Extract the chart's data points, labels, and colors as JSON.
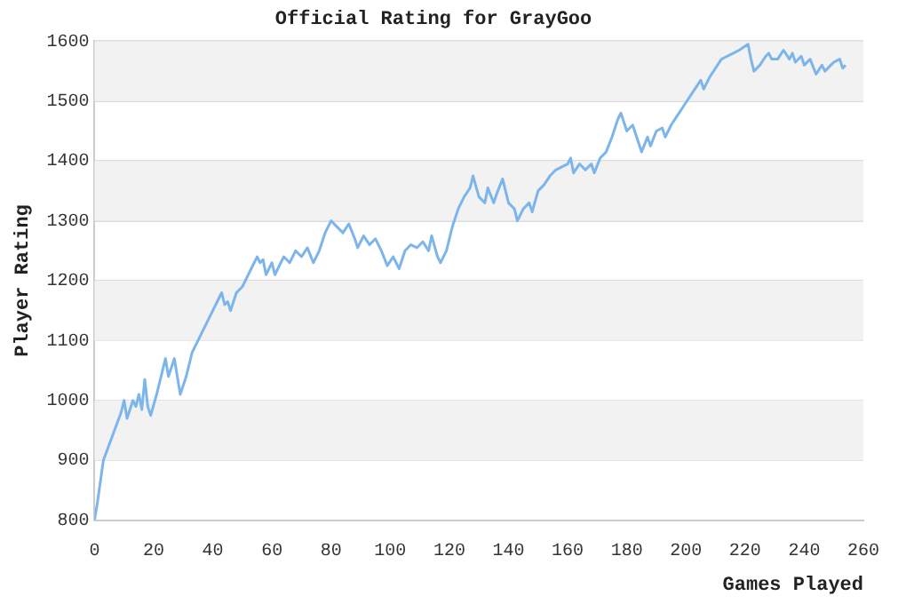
{
  "chart_data": {
    "type": "line",
    "title": "Official Rating for GrayGoo",
    "xlabel": "Games Played",
    "ylabel": "Player Rating",
    "x": [
      0,
      1,
      3,
      6,
      9,
      10,
      11,
      13,
      14,
      15,
      16,
      17,
      18,
      19,
      21,
      23,
      24,
      25,
      27,
      29,
      31,
      33,
      36,
      39,
      42,
      43,
      44,
      45,
      46,
      48,
      50,
      52,
      54,
      55,
      56,
      57,
      58,
      60,
      61,
      63,
      64,
      66,
      68,
      70,
      72,
      74,
      76,
      78,
      80,
      82,
      84,
      86,
      88,
      89,
      91,
      93,
      95,
      97,
      99,
      101,
      103,
      105,
      107,
      109,
      111,
      113,
      114,
      116,
      117,
      119,
      121,
      123,
      125,
      127,
      128,
      130,
      132,
      133,
      135,
      136,
      138,
      139,
      140,
      142,
      143,
      145,
      147,
      148,
      150,
      152,
      154,
      156,
      158,
      160,
      161,
      162,
      164,
      166,
      168,
      169,
      171,
      173,
      175,
      177,
      178,
      180,
      182,
      184,
      185,
      187,
      188,
      190,
      192,
      193,
      195,
      197,
      199,
      201,
      203,
      205,
      206,
      208,
      210,
      212,
      214,
      216,
      218,
      221,
      222,
      223,
      225,
      227,
      228,
      229,
      231,
      233,
      235,
      236,
      237,
      239,
      240,
      242,
      244,
      246,
      247,
      249,
      250,
      252,
      253,
      254
    ],
    "series": [
      {
        "color": "#7cb5ec",
        "values": [
          800,
          830,
          900,
          940,
          980,
          1000,
          970,
          1000,
          990,
          1010,
          985,
          1035,
          990,
          975,
          1010,
          1050,
          1070,
          1040,
          1070,
          1010,
          1040,
          1080,
          1110,
          1140,
          1170,
          1180,
          1160,
          1165,
          1150,
          1180,
          1190,
          1210,
          1230,
          1240,
          1230,
          1235,
          1210,
          1230,
          1210,
          1230,
          1240,
          1230,
          1250,
          1240,
          1255,
          1230,
          1250,
          1280,
          1300,
          1290,
          1280,
          1295,
          1270,
          1255,
          1275,
          1260,
          1270,
          1250,
          1225,
          1240,
          1220,
          1250,
          1260,
          1255,
          1265,
          1250,
          1275,
          1240,
          1230,
          1250,
          1290,
          1320,
          1340,
          1355,
          1375,
          1340,
          1330,
          1355,
          1330,
          1345,
          1370,
          1350,
          1330,
          1320,
          1300,
          1320,
          1330,
          1315,
          1350,
          1360,
          1375,
          1385,
          1390,
          1395,
          1405,
          1380,
          1395,
          1385,
          1395,
          1380,
          1405,
          1415,
          1440,
          1470,
          1480,
          1450,
          1460,
          1430,
          1415,
          1440,
          1425,
          1450,
          1455,
          1440,
          1460,
          1475,
          1490,
          1505,
          1520,
          1535,
          1520,
          1540,
          1555,
          1570,
          1575,
          1580,
          1585,
          1595,
          1570,
          1550,
          1560,
          1575,
          1580,
          1570,
          1570,
          1585,
          1570,
          1580,
          1565,
          1575,
          1560,
          1570,
          1545,
          1560,
          1550,
          1560,
          1565,
          1570,
          1555,
          1560
        ]
      }
    ],
    "xlim": [
      0,
      260
    ],
    "xticks": [
      0,
      20,
      40,
      60,
      80,
      100,
      120,
      140,
      160,
      180,
      200,
      220,
      240,
      260
    ],
    "ylim": [
      800,
      1600
    ],
    "yticks": [
      800,
      900,
      1000,
      1100,
      1200,
      1300,
      1400,
      1500,
      1600
    ],
    "grid": "y",
    "marker": "none",
    "line_style": "solid",
    "legend": false
  }
}
